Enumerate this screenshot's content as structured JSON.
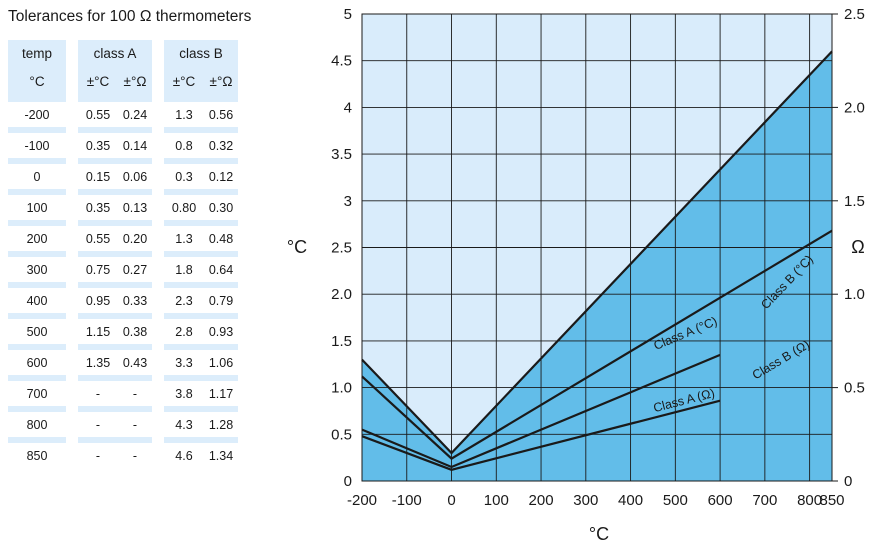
{
  "table": {
    "title": "Tolerances for 100 Ω thermometers",
    "headers": {
      "temp": "temp",
      "class_a": "class A",
      "class_b": "class B"
    },
    "subheaders": {
      "temp_unit": "°C",
      "a_c": "±°C",
      "a_ohm": "±°Ω",
      "b_c": "±°C",
      "b_ohm": "±°Ω"
    },
    "rows": [
      [
        "-200",
        "0.55",
        "0.24",
        "1.3",
        "0.56"
      ],
      [
        "-100",
        "0.35",
        "0.14",
        "0.8",
        "0.32"
      ],
      [
        "0",
        "0.15",
        "0.06",
        "0.3",
        "0.12"
      ],
      [
        "100",
        "0.35",
        "0.13",
        "0.80",
        "0.30"
      ],
      [
        "200",
        "0.55",
        "0.20",
        "1.3",
        "0.48"
      ],
      [
        "300",
        "0.75",
        "0.27",
        "1.8",
        "0.64"
      ],
      [
        "400",
        "0.95",
        "0.33",
        "2.3",
        "0.79"
      ],
      [
        "500",
        "1.15",
        "0.38",
        "2.8",
        "0.93"
      ],
      [
        "600",
        "1.35",
        "0.43",
        "3.3",
        "1.06"
      ],
      [
        "700",
        "-",
        "-",
        "3.8",
        "1.17"
      ],
      [
        "800",
        "-",
        "-",
        "4.3",
        "1.28"
      ],
      [
        "850",
        "-",
        "-",
        "4.6",
        "1.34"
      ]
    ]
  },
  "chart_data": {
    "type": "line",
    "xlabel": "°C",
    "ylabel_left": "°C",
    "ylabel_right": "Ω",
    "xlim": [
      -200,
      850
    ],
    "ylim_left": [
      0,
      5
    ],
    "ylim_right": [
      0,
      2.5
    ],
    "x_ticks": [
      "-200",
      "-100",
      "0",
      "100",
      "200",
      "300",
      "400",
      "500",
      "600",
      "700",
      "800",
      "850"
    ],
    "y_ticks_left": [
      "0",
      "0.5",
      "1.0",
      "1.5",
      "2.0",
      "2.5",
      "3",
      "3.5",
      "4",
      "4.5",
      "5"
    ],
    "y_ticks_right": [
      "0",
      "0.5",
      "1.0",
      "1.5",
      "2.0",
      "2.5"
    ],
    "grid": true,
    "colors": {
      "upper_fill": "#d9ecfb",
      "lower_fill": "#62bde9",
      "line": "#1a1a1a"
    },
    "series": [
      {
        "name": "Class B (°C)",
        "axis": "left",
        "x": [
          -200,
          0,
          850
        ],
        "y": [
          1.3,
          0.3,
          4.6
        ]
      },
      {
        "name": "Class B (Ω)",
        "axis": "right",
        "x": [
          -200,
          0,
          850
        ],
        "y": [
          0.56,
          0.12,
          1.34
        ]
      },
      {
        "name": "Class A (°C)",
        "axis": "left",
        "x": [
          -200,
          0,
          600
        ],
        "y": [
          0.55,
          0.15,
          1.35
        ]
      },
      {
        "name": "Class A (Ω)",
        "axis": "right",
        "x": [
          -200,
          0,
          600
        ],
        "y": [
          0.24,
          0.06,
          0.43
        ]
      }
    ]
  }
}
